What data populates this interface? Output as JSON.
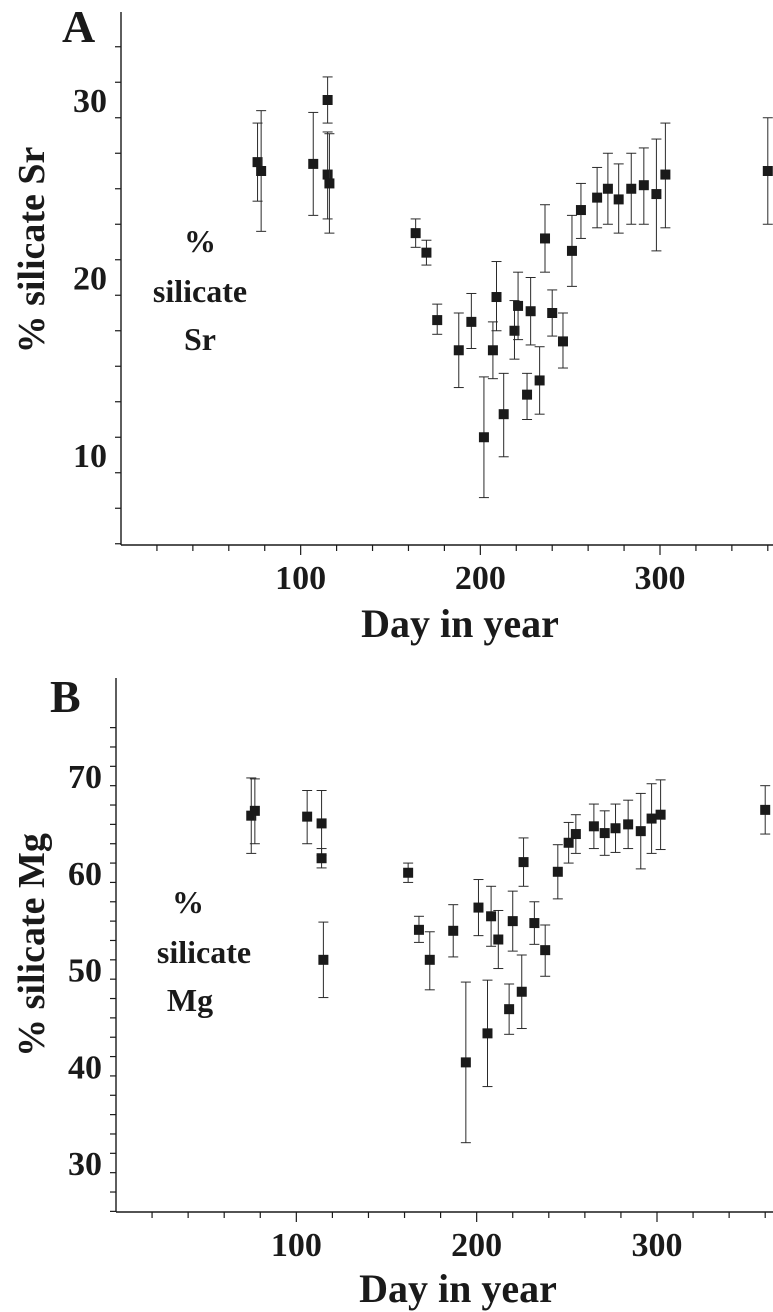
{
  "chart_data": [
    {
      "type": "scatter",
      "panel_label": "A",
      "ylabel": "% silicate Sr",
      "xlabel": "Day in year",
      "annotation": [
        "%",
        "silicate",
        "Sr"
      ],
      "xlim": [
        0,
        360
      ],
      "ylim": [
        5,
        36
      ],
      "xticks": [
        100,
        200,
        300
      ],
      "yticks": [
        10,
        20,
        30
      ],
      "points": [
        {
          "x": 76,
          "y": 26.5,
          "lo": 24.3,
          "hi": 28.7
        },
        {
          "x": 78,
          "y": 26.0,
          "lo": 22.6,
          "hi": 29.4
        },
        {
          "x": 107,
          "y": 26.4,
          "lo": 23.5,
          "hi": 29.3
        },
        {
          "x": 115,
          "y": 30.0,
          "lo": 28.7,
          "hi": 31.3
        },
        {
          "x": 115,
          "y": 25.8,
          "lo": 23.3,
          "hi": 28.2
        },
        {
          "x": 116,
          "y": 25.3,
          "lo": 22.5,
          "hi": 28.1
        },
        {
          "x": 164,
          "y": 22.5,
          "lo": 21.7,
          "hi": 23.3
        },
        {
          "x": 170,
          "y": 21.4,
          "lo": 20.7,
          "hi": 22.1
        },
        {
          "x": 176,
          "y": 17.6,
          "lo": 16.8,
          "hi": 18.5
        },
        {
          "x": 188,
          "y": 15.9,
          "lo": 13.8,
          "hi": 18.0
        },
        {
          "x": 195,
          "y": 17.5,
          "lo": 16.0,
          "hi": 19.1
        },
        {
          "x": 202,
          "y": 11.0,
          "lo": 7.6,
          "hi": 14.4
        },
        {
          "x": 207,
          "y": 15.9,
          "lo": 14.3,
          "hi": 17.5
        },
        {
          "x": 209,
          "y": 18.9,
          "lo": 17.0,
          "hi": 20.9
        },
        {
          "x": 213,
          "y": 12.3,
          "lo": 9.9,
          "hi": 14.6
        },
        {
          "x": 219,
          "y": 17.0,
          "lo": 15.4,
          "hi": 18.7
        },
        {
          "x": 221,
          "y": 18.4,
          "lo": 16.5,
          "hi": 20.3
        },
        {
          "x": 226,
          "y": 13.4,
          "lo": 12.0,
          "hi": 14.6
        },
        {
          "x": 228,
          "y": 18.1,
          "lo": 16.2,
          "hi": 20.0
        },
        {
          "x": 233,
          "y": 14.2,
          "lo": 12.3,
          "hi": 16.1
        },
        {
          "x": 236,
          "y": 22.2,
          "lo": 20.3,
          "hi": 24.1
        },
        {
          "x": 240,
          "y": 18.0,
          "lo": 16.7,
          "hi": 19.3
        },
        {
          "x": 246,
          "y": 16.4,
          "lo": 14.9,
          "hi": 18.0
        },
        {
          "x": 251,
          "y": 21.5,
          "lo": 19.5,
          "hi": 23.5
        },
        {
          "x": 256,
          "y": 23.8,
          "lo": 22.2,
          "hi": 25.3
        },
        {
          "x": 265,
          "y": 24.5,
          "lo": 22.8,
          "hi": 26.2
        },
        {
          "x": 271,
          "y": 25.0,
          "lo": 23.0,
          "hi": 27.0
        },
        {
          "x": 277,
          "y": 24.4,
          "lo": 22.5,
          "hi": 26.4
        },
        {
          "x": 284,
          "y": 25.0,
          "lo": 23.0,
          "hi": 27.0
        },
        {
          "x": 291,
          "y": 25.2,
          "lo": 23.0,
          "hi": 27.3
        },
        {
          "x": 298,
          "y": 24.7,
          "lo": 21.5,
          "hi": 27.8
        },
        {
          "x": 303,
          "y": 25.8,
          "lo": 22.8,
          "hi": 28.7
        },
        {
          "x": 360,
          "y": 26.0,
          "lo": 23.0,
          "hi": 29.0
        }
      ]
    },
    {
      "type": "scatter",
      "panel_label": "B",
      "ylabel": "% silicate Mg",
      "xlabel": "Day in year",
      "annotation": [
        "%",
        "silicate",
        "Mg"
      ],
      "xlim": [
        0,
        360
      ],
      "ylim": [
        25,
        75
      ],
      "xticks": [
        100,
        200,
        300
      ],
      "yticks": [
        30,
        40,
        50,
        60,
        70
      ],
      "points": [
        {
          "x": 75,
          "y": 65.9,
          "lo": 62.0,
          "hi": 69.8
        },
        {
          "x": 77,
          "y": 66.4,
          "lo": 63.0,
          "hi": 69.7
        },
        {
          "x": 106,
          "y": 65.8,
          "lo": 63.0,
          "hi": 68.5
        },
        {
          "x": 114,
          "y": 65.1,
          "lo": 61.8,
          "hi": 68.5
        },
        {
          "x": 114,
          "y": 61.5,
          "lo": 60.5,
          "hi": 62.5
        },
        {
          "x": 115,
          "y": 51.0,
          "lo": 47.1,
          "hi": 54.9
        },
        {
          "x": 162,
          "y": 60.0,
          "lo": 59.0,
          "hi": 61.0
        },
        {
          "x": 168,
          "y": 54.1,
          "lo": 52.8,
          "hi": 55.5
        },
        {
          "x": 174,
          "y": 51.0,
          "lo": 47.9,
          "hi": 53.9
        },
        {
          "x": 187,
          "y": 54.0,
          "lo": 51.3,
          "hi": 56.7
        },
        {
          "x": 194,
          "y": 40.4,
          "lo": 32.1,
          "hi": 48.7
        },
        {
          "x": 201,
          "y": 56.4,
          "lo": 53.5,
          "hi": 59.3
        },
        {
          "x": 206,
          "y": 43.4,
          "lo": 37.9,
          "hi": 48.9
        },
        {
          "x": 208,
          "y": 55.5,
          "lo": 52.4,
          "hi": 58.6
        },
        {
          "x": 212,
          "y": 53.1,
          "lo": 50.1,
          "hi": 56.1
        },
        {
          "x": 218,
          "y": 45.9,
          "lo": 43.3,
          "hi": 48.5
        },
        {
          "x": 220,
          "y": 55.0,
          "lo": 51.9,
          "hi": 58.1
        },
        {
          "x": 225,
          "y": 47.7,
          "lo": 43.9,
          "hi": 51.5
        },
        {
          "x": 226,
          "y": 61.1,
          "lo": 58.6,
          "hi": 63.6
        },
        {
          "x": 232,
          "y": 54.8,
          "lo": 52.6,
          "hi": 57.0
        },
        {
          "x": 238,
          "y": 52.0,
          "lo": 49.3,
          "hi": 54.6
        },
        {
          "x": 245,
          "y": 60.1,
          "lo": 57.3,
          "hi": 62.9
        },
        {
          "x": 251,
          "y": 63.1,
          "lo": 61.0,
          "hi": 65.2
        },
        {
          "x": 255,
          "y": 64.0,
          "lo": 62.0,
          "hi": 66.0
        },
        {
          "x": 265,
          "y": 64.8,
          "lo": 62.5,
          "hi": 67.1
        },
        {
          "x": 271,
          "y": 64.1,
          "lo": 61.8,
          "hi": 66.4
        },
        {
          "x": 277,
          "y": 64.6,
          "lo": 62.1,
          "hi": 67.1
        },
        {
          "x": 284,
          "y": 65.0,
          "lo": 62.5,
          "hi": 67.5
        },
        {
          "x": 291,
          "y": 64.3,
          "lo": 60.4,
          "hi": 68.2
        },
        {
          "x": 297,
          "y": 65.6,
          "lo": 62.0,
          "hi": 69.2
        },
        {
          "x": 302,
          "y": 66.0,
          "lo": 62.4,
          "hi": 69.6
        },
        {
          "x": 360,
          "y": 66.5,
          "lo": 64.0,
          "hi": 69.0
        }
      ]
    }
  ]
}
